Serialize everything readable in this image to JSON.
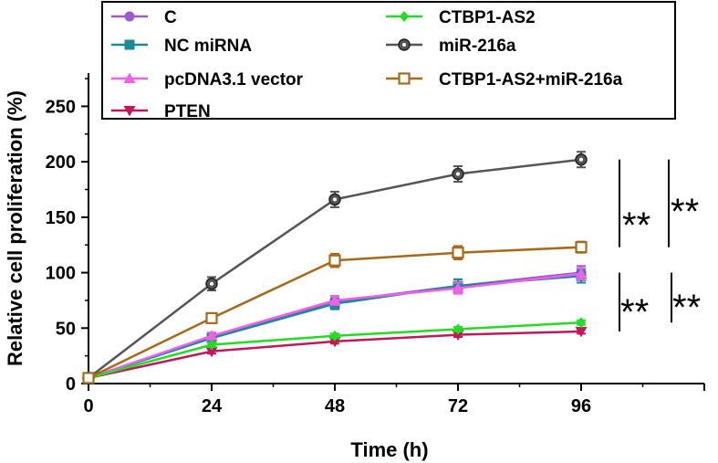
{
  "chart_data": {
    "type": "line",
    "title": "",
    "xlabel": "Time (h)",
    "ylabel": "Relative cell proliferation (%)",
    "x": [
      0,
      24,
      48,
      72,
      96
    ],
    "x_ticks": [
      "0",
      "24",
      "48",
      "72",
      "96"
    ],
    "y_ticks": [
      "0",
      "50",
      "100",
      "150",
      "200",
      "250"
    ],
    "xlim": [
      0,
      120
    ],
    "ylim": [
      0,
      280
    ],
    "grid": false,
    "legend_position": "top",
    "series": [
      {
        "name": "C",
        "color": "#9b59d6",
        "marker": "circle",
        "values": [
          5,
          42,
          74,
          88,
          100
        ],
        "errors": [
          2,
          3,
          5,
          6,
          6
        ]
      },
      {
        "name": "NC miRNA",
        "color": "#1a8a9a",
        "marker": "square",
        "values": [
          5,
          41,
          72,
          88,
          97
        ],
        "errors": [
          2,
          3,
          5,
          6,
          6
        ]
      },
      {
        "name": "pcDNA3.1 vector",
        "color": "#f060e8",
        "marker": "triangle-up",
        "values": [
          5,
          43,
          75,
          86,
          99
        ],
        "errors": [
          2,
          3,
          4,
          5,
          5
        ]
      },
      {
        "name": "PTEN",
        "color": "#c0185a",
        "marker": "triangle-down",
        "values": [
          5,
          29,
          38,
          44,
          47
        ],
        "errors": [
          1,
          2,
          2,
          2,
          2
        ]
      },
      {
        "name": "CTBP1-AS2",
        "color": "#22dd22",
        "marker": "diamond",
        "values": [
          5,
          35,
          43,
          49,
          55
        ],
        "errors": [
          1,
          2,
          2,
          2,
          2
        ]
      },
      {
        "name": "miR-216a",
        "color": "#555555",
        "marker": "circle-dot",
        "values": [
          5,
          90,
          166,
          189,
          202
        ],
        "errors": [
          2,
          6,
          7,
          7,
          7
        ]
      },
      {
        "name": "CTBP1-AS2+miR-216a",
        "color": "#a86a1a",
        "marker": "square-open",
        "values": [
          5,
          59,
          111,
          118,
          123
        ],
        "errors": [
          2,
          3,
          6,
          6,
          5
        ]
      }
    ],
    "annotations": [
      {
        "text": "**",
        "group": "upper-inner"
      },
      {
        "text": "**",
        "group": "upper-outer"
      },
      {
        "text": "**",
        "group": "lower-inner"
      },
      {
        "text": "**",
        "group": "lower-outer"
      }
    ]
  }
}
